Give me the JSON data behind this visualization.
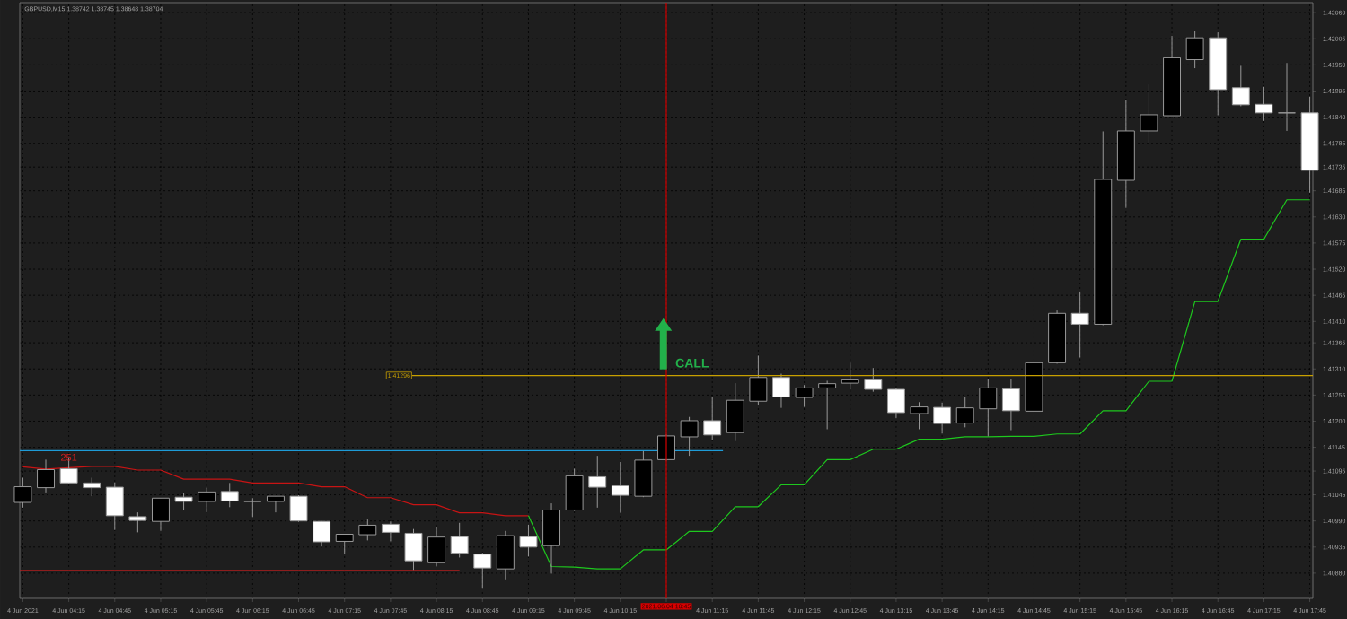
{
  "chart_data": {
    "type": "candlestick",
    "title": "GBPUSD,M15 1.38742 1.38745 1.38648 1.38704",
    "x": [
      "2021-06-04T03:45",
      "2021-06-04T04:00",
      "2021-06-04T04:15",
      "2021-06-04T04:30",
      "2021-06-04T04:45",
      "2021-06-04T05:00",
      "2021-06-04T05:15",
      "2021-06-04T05:30",
      "2021-06-04T05:45",
      "2021-06-04T06:00",
      "2021-06-04T06:15",
      "2021-06-04T06:30",
      "2021-06-04T06:45",
      "2021-06-04T07:00",
      "2021-06-04T07:15",
      "2021-06-04T07:30",
      "2021-06-04T07:45",
      "2021-06-04T08:00",
      "2021-06-04T08:15",
      "2021-06-04T08:30",
      "2021-06-04T08:45",
      "2021-06-04T09:00",
      "2021-06-04T09:15",
      "2021-06-04T09:30",
      "2021-06-04T09:45",
      "2021-06-04T10:00",
      "2021-06-04T10:15",
      "2021-06-04T10:30",
      "2021-06-04T10:45",
      "2021-06-04T11:00",
      "2021-06-04T11:15",
      "2021-06-04T11:30",
      "2021-06-04T11:45",
      "2021-06-04T12:00",
      "2021-06-04T12:15",
      "2021-06-04T12:30",
      "2021-06-04T12:45",
      "2021-06-04T13:00",
      "2021-06-04T13:15",
      "2021-06-04T13:30",
      "2021-06-04T13:45",
      "2021-06-04T14:00",
      "2021-06-04T14:15",
      "2021-06-04T14:30",
      "2021-06-04T14:45",
      "2021-06-04T15:00",
      "2021-06-04T15:15",
      "2021-06-04T15:30",
      "2021-06-04T15:45",
      "2021-06-04T16:00",
      "2021-06-04T16:15",
      "2021-06-04T16:30",
      "2021-06-04T16:45",
      "2021-06-04T17:00",
      "2021-06-04T17:15",
      "2021-06-04T17:30",
      "2021-06-04T17:45"
    ],
    "ohlc": [
      [
        1.41029,
        1.41081,
        1.41018,
        1.41062
      ],
      [
        1.4106,
        1.41119,
        1.4105,
        1.41098
      ],
      [
        1.411,
        1.41124,
        1.41068,
        1.4107
      ],
      [
        1.4107,
        1.41081,
        1.41042,
        1.4106
      ],
      [
        1.41061,
        1.41071,
        1.40971,
        1.41001
      ],
      [
        1.40999,
        1.41008,
        1.40966,
        1.40991
      ],
      [
        1.40989,
        1.41038,
        1.40969,
        1.41038
      ],
      [
        1.4104,
        1.41048,
        1.41012,
        1.41031
      ],
      [
        1.41031,
        1.4106,
        1.41008,
        1.41051
      ],
      [
        1.41052,
        1.4107,
        1.41019,
        1.41032
      ],
      [
        1.41031,
        1.41038,
        1.40998,
        1.41031
      ],
      [
        1.41031,
        1.41042,
        1.41008,
        1.41042
      ],
      [
        1.41042,
        1.41044,
        1.40988,
        1.4099
      ],
      [
        1.40989,
        1.4099,
        1.40936,
        1.40946
      ],
      [
        1.40947,
        1.40962,
        1.4092,
        1.40962
      ],
      [
        1.40961,
        1.40993,
        1.40949,
        1.40981
      ],
      [
        1.40983,
        1.40989,
        1.40947,
        1.40966
      ],
      [
        1.40964,
        1.40973,
        1.40887,
        1.40906
      ],
      [
        1.40902,
        1.40978,
        1.40894,
        1.40956
      ],
      [
        1.40957,
        1.40986,
        1.40913,
        1.40922
      ],
      [
        1.4092,
        1.40923,
        1.40847,
        1.40891
      ],
      [
        1.40889,
        1.40969,
        1.40867,
        1.40959
      ],
      [
        1.40957,
        1.40982,
        1.40915,
        1.40935
      ],
      [
        1.40938,
        1.41027,
        1.40879,
        1.41013
      ],
      [
        1.41013,
        1.411,
        1.41011,
        1.41085
      ],
      [
        1.41083,
        1.41127,
        1.41018,
        1.41061
      ],
      [
        1.41064,
        1.41114,
        1.41007,
        1.41044
      ],
      [
        1.41042,
        1.41137,
        1.4104,
        1.41118
      ],
      [
        1.41119,
        1.41172,
        1.41117,
        1.41169
      ],
      [
        1.41167,
        1.41209,
        1.41127,
        1.41201
      ],
      [
        1.41201,
        1.41252,
        1.41161,
        1.41171
      ],
      [
        1.41176,
        1.4128,
        1.41158,
        1.41244
      ],
      [
        1.41242,
        1.41338,
        1.41234,
        1.41292
      ],
      [
        1.41292,
        1.413,
        1.41228,
        1.41251
      ],
      [
        1.4125,
        1.41276,
        1.4123,
        1.4127
      ],
      [
        1.4127,
        1.41285,
        1.41183,
        1.41279
      ],
      [
        1.4128,
        1.41323,
        1.41267,
        1.41287
      ],
      [
        1.41287,
        1.41312,
        1.41262,
        1.41267
      ],
      [
        1.41267,
        1.41269,
        1.41206,
        1.41218
      ],
      [
        1.41216,
        1.4124,
        1.41183,
        1.4123
      ],
      [
        1.41229,
        1.41239,
        1.41174,
        1.41195
      ],
      [
        1.41196,
        1.4125,
        1.41187,
        1.41228
      ],
      [
        1.41226,
        1.41288,
        1.41168,
        1.4127
      ],
      [
        1.41268,
        1.41289,
        1.41181,
        1.41222
      ],
      [
        1.41221,
        1.41331,
        1.41209,
        1.41323
      ],
      [
        1.41323,
        1.41433,
        1.41321,
        1.41427
      ],
      [
        1.41427,
        1.41473,
        1.41334,
        1.41404
      ],
      [
        1.41404,
        1.4181,
        1.41402,
        1.41709
      ],
      [
        1.41707,
        1.41876,
        1.41649,
        1.41811
      ],
      [
        1.41811,
        1.41909,
        1.41786,
        1.41845
      ],
      [
        1.41843,
        1.42011,
        1.41843,
        1.41965
      ],
      [
        1.41961,
        1.42021,
        1.41943,
        1.42007
      ],
      [
        1.42007,
        1.42019,
        1.41844,
        1.41898
      ],
      [
        1.41902,
        1.41948,
        1.41863,
        1.41866
      ],
      [
        1.41867,
        1.41904,
        1.41832,
        1.41849
      ],
      [
        1.41849,
        1.41954,
        1.41811,
        1.41849
      ],
      [
        1.41849,
        1.41883,
        1.41681,
        1.41728
      ]
    ],
    "colors": [
      "#000000",
      "#000000",
      "#ffffff",
      "#ffffff",
      "#ffffff",
      "#ffffff",
      "#000000",
      "#ffffff",
      "#000000",
      "#ffffff",
      "#9a9a9a",
      "#000000",
      "#ffffff",
      "#ffffff",
      "#000000",
      "#000000",
      "#ffffff",
      "#ffffff",
      "#000000",
      "#ffffff",
      "#ffffff",
      "#000000",
      "#ffffff",
      "#000000",
      "#000000",
      "#ffffff",
      "#ffffff",
      "#000000",
      "#000000",
      "#000000",
      "#ffffff",
      "#000000",
      "#000000",
      "#ffffff",
      "#000000",
      "#000000",
      "#000000",
      "#ffffff",
      "#ffffff",
      "#000000",
      "#ffffff",
      "#000000",
      "#000000",
      "#ffffff",
      "#000000",
      "#000000",
      "#ffffff",
      "#000000",
      "#000000",
      "#000000",
      "#000000",
      "#000000",
      "#ffffff",
      "#ffffff",
      "#ffffff",
      "#9a9a9a",
      "#ffffff"
    ],
    "series": [
      {
        "type": "line",
        "color": "#c81414",
        "x": [
          "2021-06-04T03:45",
          "2021-06-04T04:00",
          "2021-06-04T04:15",
          "2021-06-04T04:30",
          "2021-06-04T04:45",
          "2021-06-04T05:00",
          "2021-06-04T05:15",
          "2021-06-04T05:30",
          "2021-06-04T05:45",
          "2021-06-04T06:00",
          "2021-06-04T06:15",
          "2021-06-04T06:30",
          "2021-06-04T06:45",
          "2021-06-04T07:00",
          "2021-06-04T07:15",
          "2021-06-04T07:30",
          "2021-06-04T07:45",
          "2021-06-04T08:00",
          "2021-06-04T08:15",
          "2021-06-04T08:30",
          "2021-06-04T08:45",
          "2021-06-04T09:00",
          "2021-06-04T09:15"
        ],
        "values": [
          1.41104,
          1.41099,
          null,
          1.41105,
          1.41105,
          1.41097,
          1.41097,
          1.41078,
          1.41078,
          1.41078,
          1.4107,
          1.4107,
          1.4107,
          1.41062,
          1.41062,
          1.41039,
          1.41039,
          1.41024,
          1.41024,
          1.41007,
          1.41007,
          1.41001,
          1.41001
        ]
      },
      {
        "type": "line",
        "color": "#1ec81e",
        "x": [
          "2021-06-04T09:15",
          "2021-06-04T09:30",
          "2021-06-04T09:45",
          "2021-06-04T10:00",
          "2021-06-04T10:15",
          "2021-06-04T10:30",
          "2021-06-04T10:45",
          "2021-06-04T11:00",
          "2021-06-04T11:15",
          "2021-06-04T11:30",
          "2021-06-04T11:45",
          "2021-06-04T12:00",
          "2021-06-04T12:15",
          "2021-06-04T12:30",
          "2021-06-04T12:45",
          "2021-06-04T13:00",
          "2021-06-04T13:15",
          "2021-06-04T13:30",
          "2021-06-04T13:45",
          "2021-06-04T14:00",
          "2021-06-04T14:15",
          "2021-06-04T14:30",
          "2021-06-04T14:45",
          "2021-06-04T15:00",
          "2021-06-04T15:15",
          "2021-06-04T15:30",
          "2021-06-04T15:45",
          "2021-06-04T16:00",
          "2021-06-04T16:15",
          "2021-06-04T16:30",
          "2021-06-04T16:45",
          "2021-06-04T17:00",
          "2021-06-04T17:15",
          "2021-06-04T17:30",
          "2021-06-04T17:45"
        ],
        "values": [
          1.41001,
          1.40894,
          1.40893,
          1.40889,
          1.40889,
          1.40929,
          1.40929,
          1.40968,
          1.40968,
          1.4102,
          1.4102,
          1.41066,
          1.41066,
          1.41119,
          1.41119,
          1.41141,
          1.41141,
          1.41162,
          1.41162,
          1.41167,
          1.41167,
          1.41168,
          1.41168,
          1.41173,
          1.41173,
          1.41222,
          1.41222,
          1.41284,
          1.41284,
          1.41452,
          1.41452,
          1.41583,
          1.41583,
          1.41666,
          1.41666
        ]
      },
      {
        "type": "line",
        "color": "#1e9bd7",
        "x": [
          "2021-06-04T03:43",
          "2021-06-04T11:22"
        ],
        "values": [
          1.41138,
          1.41138
        ]
      },
      {
        "type": "line",
        "color": "#b41e1e",
        "x": [
          "2021-06-04T03:43",
          "2021-06-04T08:30"
        ],
        "values": [
          1.40886,
          1.40886
        ]
      }
    ],
    "ref_lines": [
      {
        "axis": "y",
        "value": 1.41296,
        "label": "1.41296",
        "color": "#c8a000"
      },
      {
        "axis": "x",
        "value": "2021-06-04T10:45",
        "label": "2021.06.04 10:45",
        "color": "#d80000"
      }
    ],
    "annotations": [
      {
        "text": "251",
        "x": "2021-06-04T04:15",
        "y": 1.41124
      },
      "CALL"
    ],
    "xlim": [
      "2021-06-04T03:43",
      "2021-06-04T17:47"
    ],
    "ylim": [
      1.40827,
      1.42081
    ],
    "xticks": [
      {
        "value": "2021-06-04T03:45",
        "label": "4 Jun 2021"
      },
      {
        "value": "2021-06-04T04:15",
        "label": "4 Jun 04:15"
      },
      {
        "value": "2021-06-04T04:45",
        "label": "4 Jun 04:45"
      },
      {
        "value": "2021-06-04T05:15",
        "label": "4 Jun 05:15"
      },
      {
        "value": "2021-06-04T05:45",
        "label": "4 Jun 05:45"
      },
      {
        "value": "2021-06-04T06:15",
        "label": "4 Jun 06:15"
      },
      {
        "value": "2021-06-04T06:45",
        "label": "4 Jun 06:45"
      },
      {
        "value": "2021-06-04T07:15",
        "label": "4 Jun 07:15"
      },
      {
        "value": "2021-06-04T07:45",
        "label": "4 Jun 07:45"
      },
      {
        "value": "2021-06-04T08:15",
        "label": "4 Jun 08:15"
      },
      {
        "value": "2021-06-04T08:45",
        "label": "4 Jun 08:45"
      },
      {
        "value": "2021-06-04T09:15",
        "label": "4 Jun 09:15"
      },
      {
        "value": "2021-06-04T09:45",
        "label": "4 Jun 09:45"
      },
      {
        "value": "2021-06-04T10:15",
        "label": "4 Jun 10:15"
      },
      {
        "value": "2021-06-04T10:45",
        "label": null
      },
      {
        "value": "2021-06-04T11:15",
        "label": "4 Jun 11:15"
      },
      {
        "value": "2021-06-04T11:45",
        "label": "4 Jun 11:45"
      },
      {
        "value": "2021-06-04T12:15",
        "label": "4 Jun 12:15"
      },
      {
        "value": "2021-06-04T12:45",
        "label": "4 Jun 12:45"
      },
      {
        "value": "2021-06-04T13:15",
        "label": "4 Jun 13:15"
      },
      {
        "value": "2021-06-04T13:45",
        "label": "4 Jun 13:45"
      },
      {
        "value": "2021-06-04T14:15",
        "label": "4 Jun 14:15"
      },
      {
        "value": "2021-06-04T14:45",
        "label": "4 Jun 14:45"
      },
      {
        "value": "2021-06-04T15:15",
        "label": "4 Jun 15:15"
      },
      {
        "value": "2021-06-04T15:45",
        "label": "4 Jun 15:45"
      },
      {
        "value": "2021-06-04T16:15",
        "label": "4 Jun 16:15"
      },
      {
        "value": "2021-06-04T16:45",
        "label": "4 Jun 16:45"
      },
      {
        "value": "2021-06-04T17:15",
        "label": "4 Jun 17:15"
      },
      {
        "value": "2021-06-04T17:45",
        "label": "4 Jun 17:45"
      }
    ],
    "yticks": [
      {
        "value": 1.4206,
        "label": "1.42060"
      },
      1.42005,
      {
        "value": 1.4195,
        "label": "1.41950"
      },
      1.41895,
      {
        "value": 1.4184,
        "label": "1.41840"
      },
      1.41785,
      1.41735,
      1.41685,
      {
        "value": 1.4163,
        "label": "1.41630"
      },
      1.41575,
      {
        "value": 1.4152,
        "label": "1.41520"
      },
      1.41465,
      {
        "value": 1.4141,
        "label": "1.41410"
      },
      1.41365,
      {
        "value": 1.4131,
        "label": "1.41310"
      },
      1.41255,
      {
        "value": 1.412,
        "label": "1.41200"
      },
      1.41145,
      1.41095,
      1.41045,
      {
        "value": 1.4099,
        "label": "1.40990"
      },
      1.40935,
      {
        "value": 1.4088,
        "label": "1.40880"
      }
    ],
    "grid": true
  }
}
